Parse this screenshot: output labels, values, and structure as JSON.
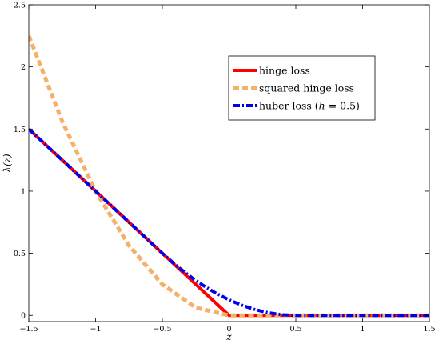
{
  "chart_data": {
    "type": "line",
    "xlabel": "z",
    "ylabel": "λ(z)",
    "xlim": [
      -1.5,
      1.5
    ],
    "ylim": [
      -0.05,
      2.5
    ],
    "x_ticks": [
      -1.5,
      -1,
      -0.5,
      0,
      0.5,
      1,
      1.5
    ],
    "x_tick_labels": [
      "−1.5",
      "−1",
      "−0.5",
      "0",
      "0.5",
      "1",
      "1.5"
    ],
    "y_ticks": [
      0,
      0.5,
      1,
      1.5,
      2,
      2.5
    ],
    "y_tick_labels": [
      "0",
      "0.5",
      "1",
      "1.5",
      "2",
      "2.5"
    ],
    "grid": false,
    "legend_placement": "upper-right",
    "series": [
      {
        "name": "hinge loss",
        "color": "#ff0000",
        "style": "solid",
        "x": [
          -1.5,
          0,
          1.5
        ],
        "y": [
          1.5,
          0,
          0
        ]
      },
      {
        "name": "squared hinge loss",
        "color": "#f5b069",
        "style": "dashed",
        "x": [
          -1.5,
          -1.25,
          -1.0,
          -0.75,
          -0.5,
          -0.25,
          0,
          0.5,
          1.0,
          1.5
        ],
        "y": [
          2.25,
          1.5625,
          1.0,
          0.5625,
          0.25,
          0.0625,
          0,
          0,
          0,
          0
        ]
      },
      {
        "name": "huber loss (h = 0.5)",
        "color": "#0000ee",
        "style": "dashdot",
        "x": [
          -1.5,
          -0.5,
          -0.4,
          -0.3,
          -0.2,
          -0.1,
          0,
          0.1,
          0.2,
          0.3,
          0.4,
          0.5,
          1.0,
          1.5
        ],
        "y": [
          1.5,
          0.5,
          0.405,
          0.32,
          0.245,
          0.18,
          0.125,
          0.08,
          0.045,
          0.02,
          0.005,
          0,
          0,
          0
        ]
      }
    ],
    "legend": [
      {
        "label": "hinge loss"
      },
      {
        "label": "squared hinge loss"
      },
      {
        "label_prefix": "huber loss (",
        "label_var": "h",
        "label_suffix": " = 0.5)"
      }
    ]
  }
}
